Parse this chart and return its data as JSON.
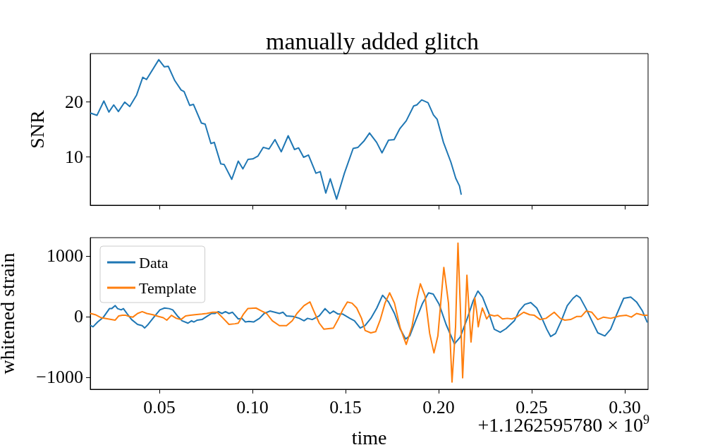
{
  "chart_data": [
    {
      "type": "line",
      "title": "manually added glitch",
      "ylabel": "SNR",
      "xlim": [
        0.0129,
        0.3125
      ],
      "ylim": [
        1.2,
        28.7
      ],
      "xticks": [
        {
          "value": 0.05,
          "label": null
        },
        {
          "value": 0.1,
          "label": null
        },
        {
          "value": 0.15,
          "label": null
        },
        {
          "value": 0.2,
          "label": null
        },
        {
          "value": 0.25,
          "label": null
        },
        {
          "value": 0.3,
          "label": null
        }
      ],
      "yticks": [
        10,
        20
      ],
      "tick_labels": "y",
      "grid": false,
      "marker": "none",
      "series": [
        {
          "color": "#1f77b4",
          "x": [
            0.0132,
            0.0165,
            0.0202,
            0.0229,
            0.0255,
            0.028,
            0.0314,
            0.0341,
            0.0378,
            0.0411,
            0.0431,
            0.0497,
            0.0527,
            0.0548,
            0.0583,
            0.0617,
            0.0633,
            0.0663,
            0.0683,
            0.0726,
            0.0746,
            0.0777,
            0.0795,
            0.083,
            0.0848,
            0.0889,
            0.0924,
            0.0949,
            0.0976,
            0.1002,
            0.1029,
            0.1058,
            0.1089,
            0.1121,
            0.1155,
            0.1192,
            0.1226,
            0.1248,
            0.1275,
            0.1301,
            0.1341,
            0.1364,
            0.1394,
            0.1418,
            0.1452,
            0.1494,
            0.1541,
            0.1567,
            0.1598,
            0.1629,
            0.1667,
            0.1696,
            0.1731,
            0.1761,
            0.1792,
            0.1826,
            0.1866,
            0.1883,
            0.1909,
            0.1943,
            0.1972,
            0.1992,
            0.2026,
            0.2066,
            0.2092,
            0.2112,
            0.2121
          ],
          "values": [
            17.9,
            17.5,
            20.1,
            18.1,
            19.4,
            18.2,
            19.9,
            19.1,
            21.2,
            24.4,
            24.0,
            27.6,
            26.3,
            26.4,
            23.8,
            22.1,
            21.8,
            19.3,
            19.5,
            16.1,
            15.9,
            12.4,
            12.6,
            8.7,
            8.6,
            5.9,
            9.2,
            7.8,
            9.5,
            9.6,
            10.1,
            11.7,
            11.4,
            13.1,
            10.9,
            13.8,
            11.3,
            11.6,
            9.9,
            10.3,
            7.0,
            7.3,
            3.4,
            6.0,
            2.3,
            7.0,
            11.5,
            11.7,
            12.8,
            14.3,
            12.6,
            10.7,
            13.0,
            13.1,
            15.1,
            16.5,
            19.2,
            19.4,
            20.3,
            19.8,
            17.6,
            16.8,
            12.6,
            9.0,
            6.1,
            4.7,
            3.2
          ]
        }
      ]
    },
    {
      "type": "line",
      "xlabel": "time",
      "ylabel": "whitened strain",
      "annotations": [
        "+1.1262595780 × 10$^{9}$"
      ],
      "xlim": [
        0.0129,
        0.3125
      ],
      "ylim": [
        -1200,
        1300
      ],
      "xticks": [
        0.05,
        {
          "value": 0.1,
          "label": "0.10"
        },
        0.15,
        {
          "value": 0.2,
          "label": "0.20"
        },
        0.25,
        {
          "value": 0.3,
          "label": "0.30"
        }
      ],
      "yticks": [
        {
          "value": -1000,
          "label": "−1000"
        },
        0,
        1000
      ],
      "grid": false,
      "marker": "none",
      "legend": "top left",
      "series": [
        {
          "name": "Data",
          "color": "#1f77b4",
          "x": [
            0.0131,
            0.0144,
            0.0169,
            0.02,
            0.0232,
            0.0244,
            0.0263,
            0.0276,
            0.0295,
            0.0307,
            0.0326,
            0.0351,
            0.0383,
            0.0408,
            0.0421,
            0.044,
            0.0471,
            0.0503,
            0.0528,
            0.0553,
            0.0572,
            0.0597,
            0.0622,
            0.0654,
            0.0673,
            0.0685,
            0.0704,
            0.0729,
            0.0754,
            0.078,
            0.0798,
            0.0817,
            0.0836,
            0.0855,
            0.0874,
            0.0893,
            0.0924,
            0.0943,
            0.0962,
            0.0981,
            0.1006,
            0.1038,
            0.1063,
            0.1094,
            0.112,
            0.1145,
            0.1164,
            0.1183,
            0.122,
            0.1252,
            0.1277,
            0.1296,
            0.1321,
            0.1359,
            0.139,
            0.1416,
            0.1435,
            0.146,
            0.1485,
            0.1523,
            0.1548,
            0.1579,
            0.1605,
            0.1636,
            0.1668,
            0.1699,
            0.1731,
            0.1763,
            0.1794,
            0.1823,
            0.1845,
            0.1876,
            0.1914,
            0.1946,
            0.1971,
            0.2003,
            0.204,
            0.2085,
            0.2116,
            0.2154,
            0.2186,
            0.2211,
            0.2236,
            0.2268,
            0.2299,
            0.2331,
            0.2362,
            0.2407,
            0.2432,
            0.2463,
            0.2495,
            0.2527,
            0.2558,
            0.2581,
            0.2602,
            0.2628,
            0.2659,
            0.2691,
            0.2722,
            0.2741,
            0.276,
            0.2792,
            0.2823,
            0.2855,
            0.2893,
            0.2924,
            0.2956,
            0.2994,
            0.3032,
            0.3063,
            0.3095,
            0.312
          ],
          "values": [
            -150,
            -170,
            -90,
            -10,
            130,
            130,
            180,
            130,
            110,
            130,
            50,
            -50,
            -130,
            -150,
            -190,
            -130,
            -10,
            110,
            140,
            130,
            110,
            10,
            -70,
            -110,
            -70,
            -90,
            -60,
            -50,
            0,
            50,
            50,
            80,
            50,
            80,
            50,
            70,
            -40,
            -30,
            -90,
            -80,
            -90,
            -30,
            50,
            90,
            70,
            50,
            70,
            10,
            0,
            -30,
            -70,
            -30,
            -50,
            10,
            130,
            50,
            90,
            40,
            40,
            -30,
            -70,
            -190,
            -150,
            -30,
            140,
            350,
            240,
            50,
            -210,
            -370,
            -320,
            -70,
            220,
            390,
            370,
            200,
            -130,
            -450,
            -340,
            -30,
            260,
            420,
            320,
            70,
            -210,
            -260,
            -200,
            -70,
            90,
            200,
            230,
            140,
            -50,
            -210,
            -330,
            -280,
            -70,
            180,
            300,
            350,
            310,
            130,
            -70,
            -270,
            -320,
            -210,
            30,
            300,
            320,
            240,
            90,
            -90
          ]
        },
        {
          "name": "Template",
          "color": "#ff7f0e",
          "x": [
            0.0131,
            0.0156,
            0.0188,
            0.0225,
            0.0263,
            0.0282,
            0.0301,
            0.032,
            0.0339,
            0.0358,
            0.0383,
            0.0408,
            0.0433,
            0.0465,
            0.0496,
            0.0521,
            0.054,
            0.0565,
            0.0591,
            0.0616,
            0.0641,
            0.0666,
            0.0691,
            0.0729,
            0.0754,
            0.0786,
            0.0811,
            0.0843,
            0.0874,
            0.0906,
            0.0924,
            0.095,
            0.0975,
            0.1019,
            0.105,
            0.1076,
            0.1107,
            0.1145,
            0.1183,
            0.1214,
            0.1239,
            0.1277,
            0.1309,
            0.1327,
            0.1359,
            0.1384,
            0.1409,
            0.1435,
            0.146,
            0.1485,
            0.151,
            0.1535,
            0.156,
            0.1586,
            0.1605,
            0.1636,
            0.1662,
            0.1687,
            0.1712,
            0.1737,
            0.1763,
            0.1794,
            0.1826,
            0.1857,
            0.1883,
            0.1902,
            0.1927,
            0.1952,
            0.1975,
            0.1996,
            0.2028,
            0.2053,
            0.2072,
            0.2091,
            0.2104,
            0.2116,
            0.2129,
            0.2141,
            0.2152,
            0.2164,
            0.2174,
            0.2186,
            0.2194,
            0.2205,
            0.2213,
            0.2223,
            0.2235,
            0.2247,
            0.2258,
            0.2274,
            0.2299,
            0.2318,
            0.2343,
            0.2369,
            0.2394,
            0.2419,
            0.2457,
            0.2489,
            0.2514,
            0.2545,
            0.2577,
            0.2621,
            0.2653,
            0.2678,
            0.2709,
            0.2741,
            0.2766,
            0.2792,
            0.2823,
            0.2855,
            0.2886,
            0.2924,
            0.2973,
            0.3009,
            0.3035,
            0.3063,
            0.3101,
            0.312
          ],
          "values": [
            50,
            30,
            -20,
            -40,
            -60,
            10,
            20,
            20,
            0,
            -10,
            50,
            80,
            50,
            30,
            0,
            -20,
            -60,
            20,
            -30,
            -50,
            10,
            20,
            30,
            40,
            50,
            70,
            70,
            -30,
            -130,
            -120,
            -110,
            30,
            130,
            140,
            90,
            50,
            -70,
            -150,
            -150,
            -70,
            50,
            180,
            240,
            110,
            -110,
            -210,
            -200,
            -190,
            -50,
            110,
            240,
            220,
            140,
            -30,
            -230,
            -270,
            -250,
            -50,
            220,
            390,
            220,
            -190,
            -460,
            -170,
            280,
            540,
            340,
            -280,
            -600,
            -320,
            810,
            220,
            -1080,
            -170,
            1210,
            220,
            -1010,
            -170,
            680,
            70,
            -420,
            -10,
            310,
            70,
            -170,
            -10,
            140,
            50,
            -40,
            30,
            10,
            20,
            -40,
            -30,
            -40,
            -10,
            70,
            30,
            20,
            -50,
            -30,
            70,
            -30,
            -60,
            -50,
            0,
            0,
            90,
            70,
            -50,
            -10,
            -30,
            10,
            20,
            -10,
            50,
            20,
            20
          ]
        }
      ]
    }
  ]
}
